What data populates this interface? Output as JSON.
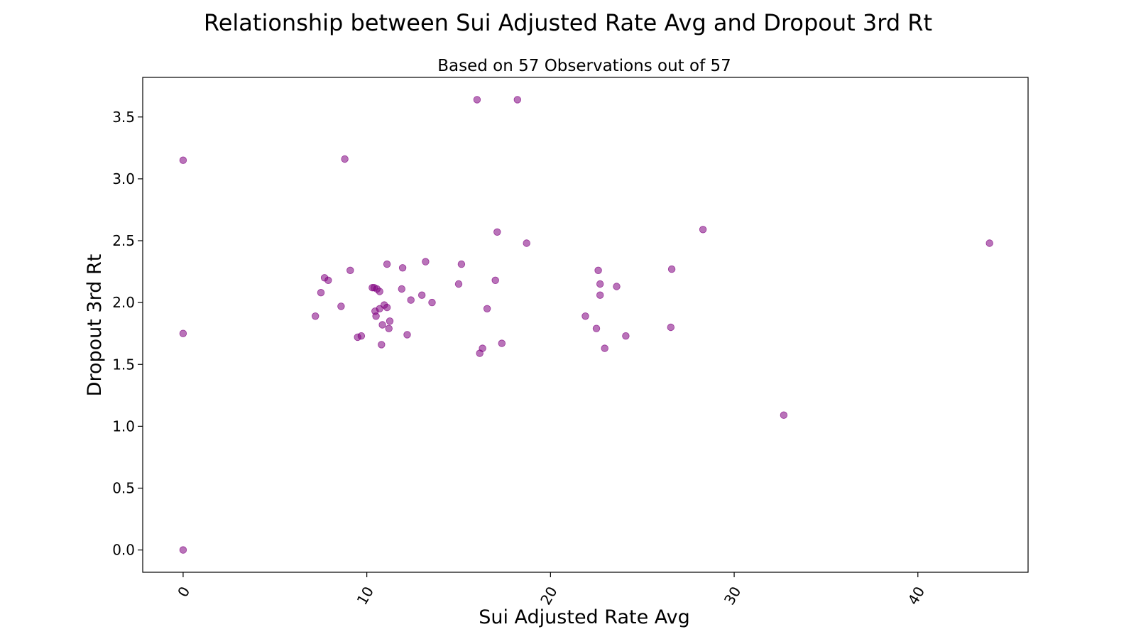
{
  "chart_data": {
    "type": "scatter",
    "title": "Relationship between Sui Adjusted Rate Avg and Dropout 3rd Rt",
    "subtitle": "Based on 57 Observations out of 57",
    "xlabel": "Sui Adjusted Rate Avg",
    "ylabel": "Dropout 3rd Rt",
    "xlim": [
      -2.2,
      46.0
    ],
    "ylim": [
      -0.18,
      3.82
    ],
    "xticks": [
      0,
      10,
      20,
      30,
      40
    ],
    "yticks": [
      0.0,
      0.5,
      1.0,
      1.5,
      2.0,
      2.5,
      3.0,
      3.5
    ],
    "xtick_labels": [
      "0",
      "10",
      "20",
      "30",
      "40"
    ],
    "ytick_labels": [
      "0.0",
      "0.5",
      "1.0",
      "1.5",
      "2.0",
      "2.5",
      "3.0",
      "3.5"
    ],
    "grid": false,
    "point_color": "#800080",
    "point_opacity": 0.55,
    "points": [
      {
        "x": 0.0,
        "y": 3.15
      },
      {
        "x": 0.0,
        "y": 1.75
      },
      {
        "x": 0.0,
        "y": 0.0
      },
      {
        "x": 7.2,
        "y": 1.89
      },
      {
        "x": 7.5,
        "y": 2.08
      },
      {
        "x": 7.7,
        "y": 2.2
      },
      {
        "x": 7.9,
        "y": 2.18
      },
      {
        "x": 8.6,
        "y": 1.97
      },
      {
        "x": 8.8,
        "y": 3.16
      },
      {
        "x": 9.1,
        "y": 2.26
      },
      {
        "x": 9.5,
        "y": 1.72
      },
      {
        "x": 9.7,
        "y": 1.73
      },
      {
        "x": 10.3,
        "y": 2.12
      },
      {
        "x": 10.4,
        "y": 2.12
      },
      {
        "x": 10.45,
        "y": 1.93
      },
      {
        "x": 10.5,
        "y": 1.89
      },
      {
        "x": 10.55,
        "y": 2.11
      },
      {
        "x": 10.7,
        "y": 2.09
      },
      {
        "x": 10.7,
        "y": 1.95
      },
      {
        "x": 10.8,
        "y": 1.66
      },
      {
        "x": 10.85,
        "y": 1.82
      },
      {
        "x": 10.95,
        "y": 1.98
      },
      {
        "x": 11.1,
        "y": 2.31
      },
      {
        "x": 11.1,
        "y": 1.96
      },
      {
        "x": 11.2,
        "y": 1.79
      },
      {
        "x": 11.25,
        "y": 1.85
      },
      {
        "x": 11.9,
        "y": 2.11
      },
      {
        "x": 11.95,
        "y": 2.28
      },
      {
        "x": 12.2,
        "y": 1.74
      },
      {
        "x": 12.4,
        "y": 2.02
      },
      {
        "x": 13.0,
        "y": 2.06
      },
      {
        "x": 13.2,
        "y": 2.33
      },
      {
        "x": 13.55,
        "y": 2.0
      },
      {
        "x": 15.0,
        "y": 2.15
      },
      {
        "x": 15.15,
        "y": 2.31
      },
      {
        "x": 16.0,
        "y": 3.64
      },
      {
        "x": 16.15,
        "y": 1.59
      },
      {
        "x": 16.3,
        "y": 1.63
      },
      {
        "x": 16.55,
        "y": 1.95
      },
      {
        "x": 17.0,
        "y": 2.18
      },
      {
        "x": 17.1,
        "y": 2.57
      },
      {
        "x": 17.35,
        "y": 1.67
      },
      {
        "x": 18.2,
        "y": 3.64
      },
      {
        "x": 18.7,
        "y": 2.48
      },
      {
        "x": 21.9,
        "y": 1.89
      },
      {
        "x": 22.5,
        "y": 1.79
      },
      {
        "x": 22.6,
        "y": 2.26
      },
      {
        "x": 22.7,
        "y": 2.06
      },
      {
        "x": 22.7,
        "y": 2.15
      },
      {
        "x": 22.95,
        "y": 1.63
      },
      {
        "x": 23.6,
        "y": 2.13
      },
      {
        "x": 24.1,
        "y": 1.73
      },
      {
        "x": 26.55,
        "y": 1.8
      },
      {
        "x": 26.6,
        "y": 2.27
      },
      {
        "x": 28.3,
        "y": 2.59
      },
      {
        "x": 32.7,
        "y": 1.09
      },
      {
        "x": 43.9,
        "y": 2.48
      }
    ]
  }
}
